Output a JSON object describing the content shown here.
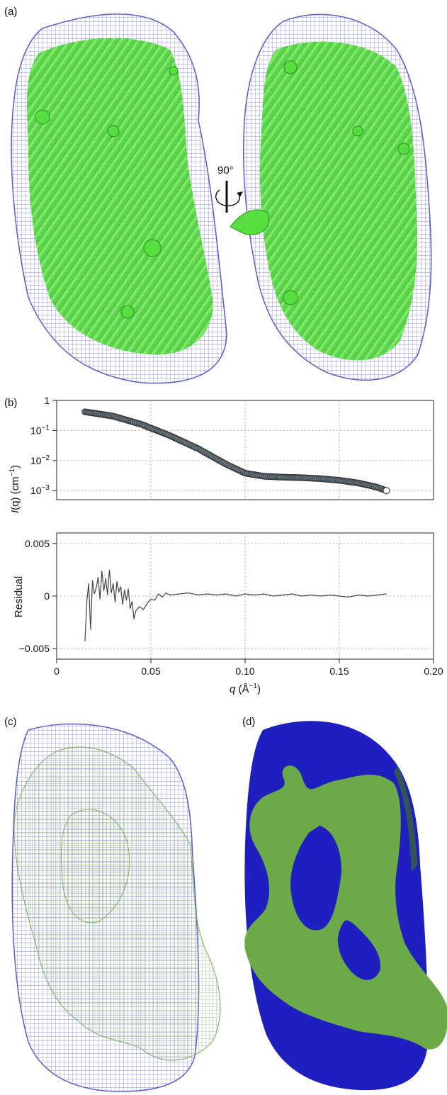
{
  "figure": {
    "panels": [
      {
        "label": "(a)",
        "rotation_label": "90°"
      },
      {
        "label": "(b)"
      },
      {
        "label": "(c)"
      },
      {
        "label": "(d)"
      }
    ],
    "colors": {
      "envelope_mesh": "#6b6fcf",
      "ribbon": "#55e040",
      "ribbon_dark": "#2e8a22",
      "model_mesh": "#8fbf78",
      "solid_blue": "#1f1fbf",
      "solid_green": "#6aaa48",
      "points_fill": "#8aa6b8",
      "residual_line": "#444444"
    }
  },
  "chart_data": [
    {
      "type": "scatter",
      "panel": "(b)",
      "ylabel_italic": "I",
      "ylabel_rest": "(q) (cm",
      "ylabel_sup": "−1",
      "ylabel_close": ")",
      "yscale": "log",
      "ylim": [
        0.0005,
        1
      ],
      "xlim": [
        0,
        0.2
      ],
      "yticks": [
        {
          "value": 1,
          "base": "1",
          "exp": ""
        },
        {
          "value": 0.1,
          "base": "10",
          "exp": "−1"
        },
        {
          "value": 0.01,
          "base": "10",
          "exp": "−2"
        },
        {
          "value": 0.001,
          "base": "10",
          "exp": "−3"
        }
      ],
      "grid": true,
      "x": [
        0.015,
        0.03,
        0.045,
        0.06,
        0.075,
        0.09,
        0.1,
        0.11,
        0.12,
        0.13,
        0.14,
        0.15,
        0.16,
        0.17,
        0.175
      ],
      "y": [
        0.42,
        0.3,
        0.16,
        0.068,
        0.025,
        0.0075,
        0.0038,
        0.003,
        0.0028,
        0.0027,
        0.0025,
        0.0022,
        0.0018,
        0.0013,
        0.001
      ]
    },
    {
      "type": "line",
      "panel": "(b)",
      "ylabel": "Residual",
      "xlabel_italic": "q",
      "xlabel_rest": " (Å",
      "xlabel_sup": "−1",
      "xlabel_close": ")",
      "xlim": [
        0,
        0.2
      ],
      "ylim": [
        -0.006,
        0.006
      ],
      "xticks": [
        "0",
        "0.05",
        "0.10",
        "0.15",
        "0.20"
      ],
      "xtick_values": [
        0,
        0.05,
        0.1,
        0.15,
        0.2
      ],
      "yticks": [
        "0.005",
        "0",
        "−0.005"
      ],
      "ytick_values": [
        0.005,
        0,
        -0.005
      ],
      "grid": true,
      "x": [
        0.015,
        0.016,
        0.017,
        0.018,
        0.019,
        0.02,
        0.021,
        0.022,
        0.023,
        0.024,
        0.025,
        0.026,
        0.027,
        0.028,
        0.029,
        0.03,
        0.031,
        0.032,
        0.033,
        0.034,
        0.035,
        0.036,
        0.037,
        0.038,
        0.039,
        0.04,
        0.041,
        0.042,
        0.044,
        0.046,
        0.048,
        0.05,
        0.052,
        0.054,
        0.056,
        0.058,
        0.06,
        0.065,
        0.07,
        0.075,
        0.08,
        0.085,
        0.09,
        0.095,
        0.1,
        0.105,
        0.11,
        0.115,
        0.12,
        0.125,
        0.13,
        0.135,
        0.14,
        0.145,
        0.15,
        0.155,
        0.16,
        0.165,
        0.17,
        0.175
      ],
      "y": [
        -0.0043,
        -0.0005,
        0.0012,
        -0.0032,
        0.0015,
        0.0002,
        0.0008,
        0.0018,
        -0.0003,
        0.0024,
        0.0005,
        0.0017,
        0.0001,
        0.0025,
        0.0003,
        0.0012,
        -0.0006,
        0.0014,
        0.0004,
        0.0009,
        -0.0008,
        0.0006,
        -0.0004,
        0.0007,
        -0.0012,
        -0.0005,
        -0.0022,
        -0.0014,
        -0.001,
        -0.0013,
        -0.0007,
        -0.0003,
        -0.0004,
        0.0002,
        -0.0001,
        0.0003,
        0.0001,
        0.0002,
        0.0003,
        0.0001,
        0.0002,
        0.0001,
        0.0002,
        0.0,
        0.0002,
        0.0001,
        0.0002,
        0.0,
        0.0001,
        0.0002,
        0.0,
        0.0001,
        0.0,
        0.0001,
        0.0,
        -0.0001,
        0.0001,
        0.0,
        0.0001,
        0.0002
      ]
    }
  ]
}
